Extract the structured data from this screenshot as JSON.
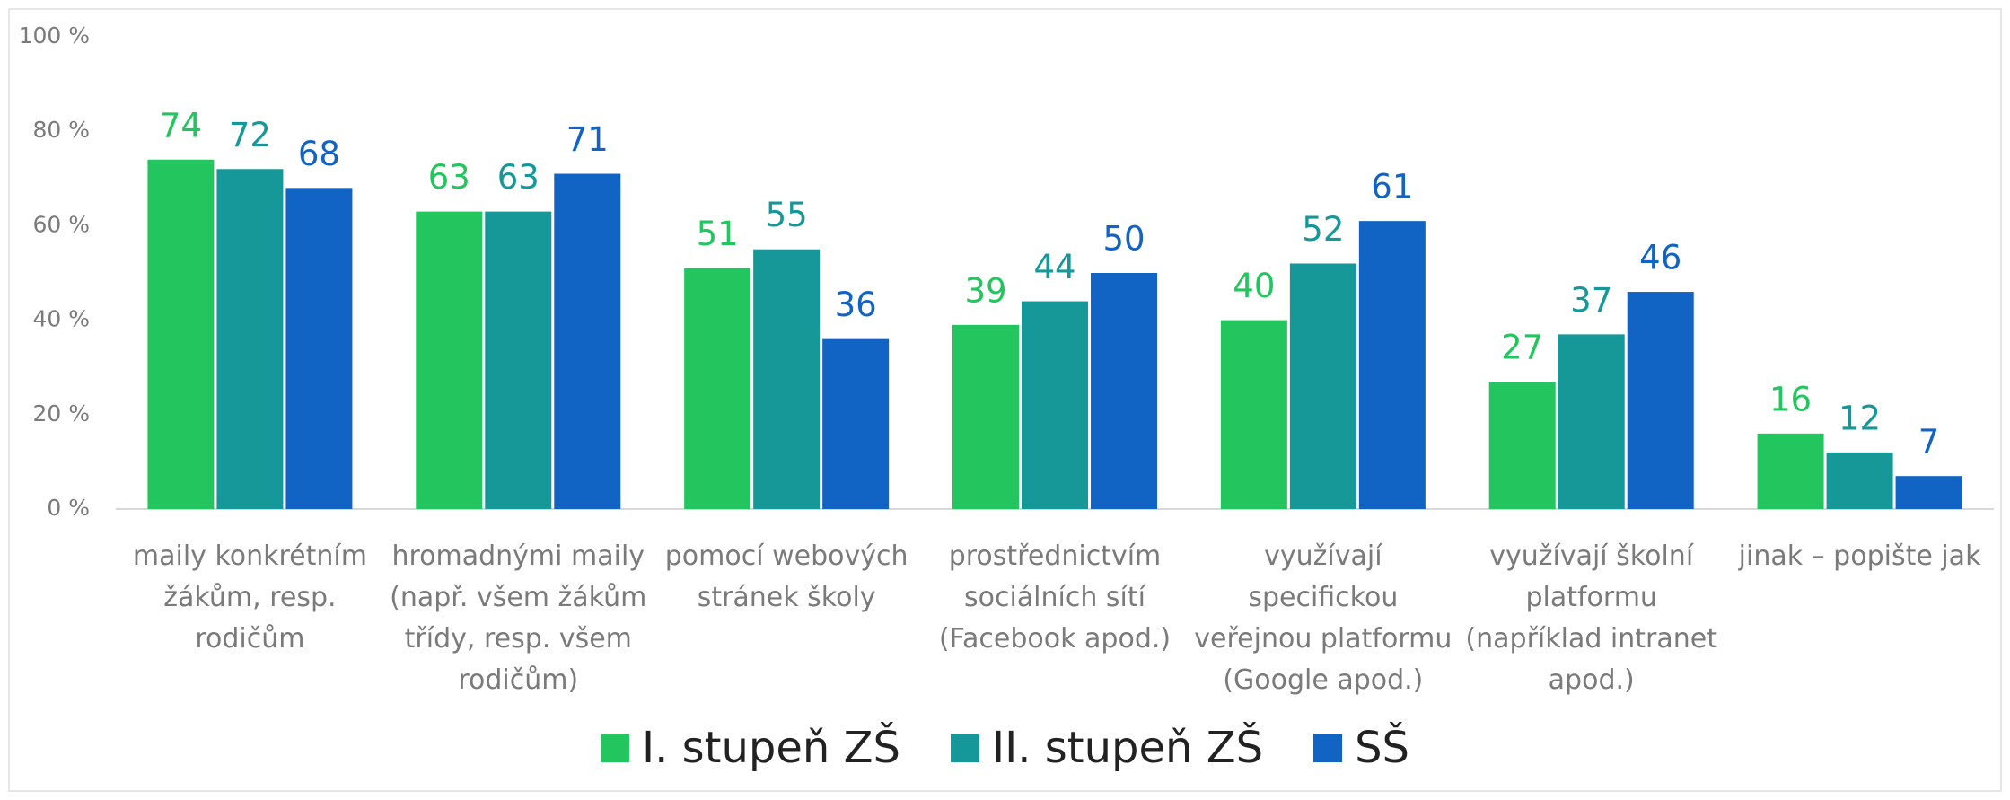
{
  "chart_data": {
    "type": "bar",
    "categories": [
      "maily konkrétním žákům, resp. rodičům",
      "hromadnými maily (např. všem žákům třídy, resp. všem rodičům)",
      "pomocí webových stránek školy",
      "prostřednictvím sociálních sítí (Facebook apod.)",
      "využívají specifickou veřejnou platformu (Google apod.)",
      "využívají školní platformu (například intranet apod.)",
      "jinak – popište jak"
    ],
    "series": [
      {
        "name": "I. stupeň ZŠ",
        "color": "#22c55e",
        "values": [
          74,
          63,
          51,
          39,
          40,
          27,
          16
        ]
      },
      {
        "name": "II. stupeň ZŠ",
        "color": "#169898",
        "values": [
          72,
          63,
          55,
          44,
          52,
          37,
          12
        ]
      },
      {
        "name": "SŠ",
        "color": "#1164c4",
        "values": [
          68,
          71,
          36,
          50,
          61,
          46,
          7
        ]
      }
    ],
    "ylim": [
      0,
      100
    ],
    "yticks": [
      {
        "value": 0,
        "label": "0 %"
      },
      {
        "value": 20,
        "label": "20 %"
      },
      {
        "value": 40,
        "label": "40 %"
      },
      {
        "value": 60,
        "label": "60 %"
      },
      {
        "value": 80,
        "label": "80 %"
      },
      {
        "value": 100,
        "label": "100 %"
      }
    ],
    "legend": "bottom"
  }
}
